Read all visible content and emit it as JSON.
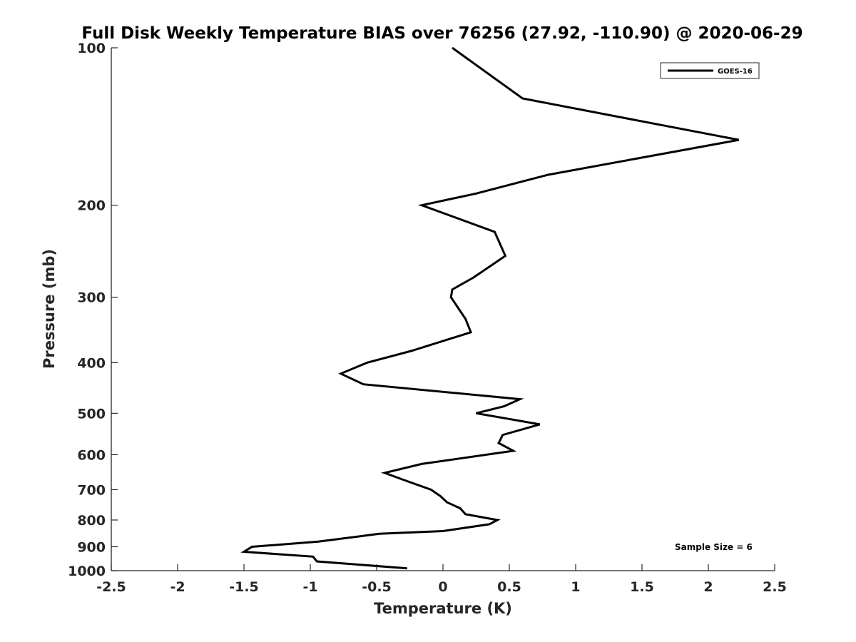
{
  "chart_data": {
    "type": "line",
    "title": "Full Disk Weekly Temperature BIAS over 76256 (27.92, -110.90) @ 2020-06-29",
    "xlabel": "Temperature (K)",
    "ylabel": "Pressure (mb)",
    "xlim": [
      -2.5,
      2.5
    ],
    "ylim": [
      1000,
      100
    ],
    "y_scale": "log",
    "y_reversed": true,
    "grid": false,
    "legend_position": "top-right",
    "x_ticks": [
      -2.5,
      -2,
      -1.5,
      -1,
      -0.5,
      0,
      0.5,
      1,
      1.5,
      2,
      2.5
    ],
    "x_tick_labels": [
      "-2.5",
      "-2",
      "-1.5",
      "-1",
      "-0.5",
      "0",
      "0.5",
      "1",
      "1.5",
      "2",
      "2.5"
    ],
    "y_ticks": [
      100,
      200,
      300,
      400,
      500,
      600,
      700,
      800,
      900,
      1000
    ],
    "y_tick_labels": [
      "100",
      "200",
      "300",
      "400",
      "500",
      "600",
      "700",
      "800",
      "900",
      "1000"
    ],
    "annotation": "Sample Size = 6",
    "series": [
      {
        "name": "GOES-16",
        "color": "#000000",
        "points": [
          {
            "t": 0.07,
            "p": 100
          },
          {
            "t": 0.6,
            "p": 125
          },
          {
            "t": 2.23,
            "p": 150
          },
          {
            "t": 0.79,
            "p": 175
          },
          {
            "t": 0.25,
            "p": 190
          },
          {
            "t": -0.16,
            "p": 200
          },
          {
            "t": 0.39,
            "p": 225
          },
          {
            "t": 0.47,
            "p": 250
          },
          {
            "t": 0.23,
            "p": 275
          },
          {
            "t": 0.07,
            "p": 290
          },
          {
            "t": 0.06,
            "p": 300
          },
          {
            "t": 0.17,
            "p": 330
          },
          {
            "t": 0.21,
            "p": 350
          },
          {
            "t": -0.24,
            "p": 380
          },
          {
            "t": -0.57,
            "p": 400
          },
          {
            "t": -0.77,
            "p": 420
          },
          {
            "t": -0.6,
            "p": 440
          },
          {
            "t": 0.58,
            "p": 470
          },
          {
            "t": 0.46,
            "p": 485
          },
          {
            "t": 0.25,
            "p": 500
          },
          {
            "t": 0.73,
            "p": 525
          },
          {
            "t": 0.45,
            "p": 550
          },
          {
            "t": 0.42,
            "p": 570
          },
          {
            "t": 0.53,
            "p": 590
          },
          {
            "t": -0.16,
            "p": 625
          },
          {
            "t": -0.44,
            "p": 650
          },
          {
            "t": -0.3,
            "p": 670
          },
          {
            "t": -0.09,
            "p": 700
          },
          {
            "t": -0.02,
            "p": 720
          },
          {
            "t": 0.03,
            "p": 740
          },
          {
            "t": 0.13,
            "p": 760
          },
          {
            "t": 0.17,
            "p": 780
          },
          {
            "t": 0.41,
            "p": 800
          },
          {
            "t": 0.35,
            "p": 815
          },
          {
            "t": 0.0,
            "p": 840
          },
          {
            "t": -0.48,
            "p": 850
          },
          {
            "t": -0.94,
            "p": 880
          },
          {
            "t": -1.44,
            "p": 900
          },
          {
            "t": -1.5,
            "p": 920
          },
          {
            "t": -0.98,
            "p": 940
          },
          {
            "t": -0.95,
            "p": 960
          },
          {
            "t": -0.27,
            "p": 990
          }
        ]
      }
    ]
  }
}
